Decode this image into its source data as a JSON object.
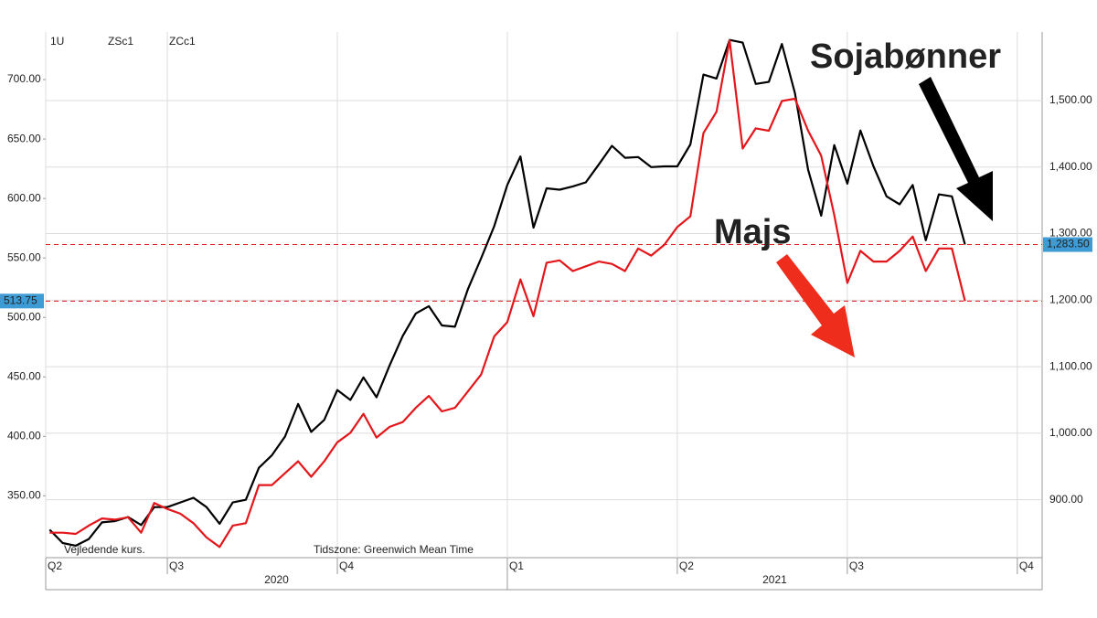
{
  "chart_data": {
    "type": "line",
    "interval": "1U",
    "x": [
      4,
      5,
      6,
      7,
      8,
      9,
      10,
      11,
      12,
      13,
      14,
      15,
      16,
      17,
      18,
      19,
      20,
      21,
      22,
      23,
      24,
      25,
      26,
      27,
      28,
      29,
      30,
      31,
      32,
      33,
      34,
      35,
      36,
      37,
      38,
      39,
      40,
      41,
      42,
      43,
      44,
      45,
      46,
      47,
      48,
      49,
      50,
      51,
      52,
      53,
      54,
      55,
      56,
      57,
      58,
      59,
      60,
      61,
      62,
      63,
      64,
      65,
      66,
      67,
      68,
      69,
      70,
      71,
      72,
      73,
      74
    ],
    "series": [
      {
        "name": "ZSc1",
        "color": "#000000",
        "axis": "y2",
        "values": [
          855,
          835,
          831,
          841,
          866,
          868,
          874,
          862,
          889,
          889,
          896,
          903,
          889,
          864,
          896,
          900,
          948,
          967,
          995,
          1044,
          1002,
          1020,
          1065,
          1050,
          1084,
          1054,
          1102,
          1146,
          1180,
          1191,
          1162,
          1160,
          1217,
          1263,
          1311,
          1373,
          1416,
          1309,
          1368,
          1366,
          1371,
          1377,
          1404,
          1432,
          1414,
          1415,
          1400,
          1401,
          1401,
          1434,
          1539,
          1533,
          1591,
          1587,
          1525,
          1528,
          1585,
          1511,
          1396,
          1327,
          1433,
          1375,
          1455,
          1401,
          1356,
          1344,
          1373,
          1290,
          1359,
          1356,
          1283.5
        ]
      },
      {
        "name": "ZCc1",
        "color": "#e3161b",
        "axis": "y",
        "values": [
          319,
          319,
          318,
          325,
          331,
          330,
          332,
          319,
          344,
          339,
          335,
          327,
          315,
          307,
          325,
          327,
          359,
          359,
          369,
          379,
          366,
          379,
          395,
          403,
          419,
          399,
          408,
          412,
          424,
          434,
          421,
          424,
          438,
          452,
          484,
          496,
          532,
          501,
          546,
          548,
          539,
          543,
          547,
          545,
          539,
          558,
          552,
          561,
          576,
          585,
          655,
          673,
          733,
          642,
          659,
          657,
          682,
          684,
          657,
          636,
          586,
          529,
          556,
          547,
          547,
          556,
          568,
          539,
          558,
          558,
          513.75
        ]
      }
    ],
    "xlim": [
      3.7,
      79.9
    ],
    "xticks": [
      {
        "value": 3.7,
        "label": "Q2"
      },
      {
        "value": 13,
        "label": "Q3"
      },
      {
        "value": 26,
        "label": "Q4"
      },
      {
        "value": 39,
        "label": "Q1"
      },
      {
        "value": 52,
        "label": "Q2"
      },
      {
        "value": 65,
        "label": "Q3"
      },
      {
        "value": 78,
        "label": "Q4"
      }
    ],
    "years": [
      "2020",
      "2021"
    ],
    "ylim": [
      298,
      740
    ],
    "yticks": [
      {
        "value": 350,
        "label": "350.00"
      },
      {
        "value": 400,
        "label": "400.00"
      },
      {
        "value": 450,
        "label": "450.00"
      },
      {
        "value": 500,
        "label": "500.00"
      },
      {
        "value": 550,
        "label": "550.00"
      },
      {
        "value": 600,
        "label": "600.00"
      },
      {
        "value": 650,
        "label": "650.00"
      },
      {
        "value": 700,
        "label": "700.00"
      }
    ],
    "y2lim": [
      813,
      1603
    ],
    "y2ticks": [
      {
        "value": 900,
        "label": "900.00"
      },
      {
        "value": 1000,
        "label": "1,000.00"
      },
      {
        "value": 1100,
        "label": "1,100.00"
      },
      {
        "value": 1200,
        "label": "1,200.00"
      },
      {
        "value": 1300,
        "label": "1,300.00"
      },
      {
        "value": 1400,
        "label": "1,400.00"
      },
      {
        "value": 1500,
        "label": "1,500.00"
      }
    ],
    "grid": true,
    "price_lines": [
      {
        "value": 513.75,
        "axis": "y"
      },
      {
        "value": 1283.5,
        "label": "1,283.50",
        "axis": "y2"
      }
    ],
    "annotations": [
      {
        "text": "Sojabønner",
        "color": "#000000"
      },
      {
        "text": "Majs",
        "color": "#ee2d1c"
      }
    ],
    "footnotes": [
      "Vejledende kurs.",
      "Tidszone: Greenwich Mean Time"
    ]
  }
}
